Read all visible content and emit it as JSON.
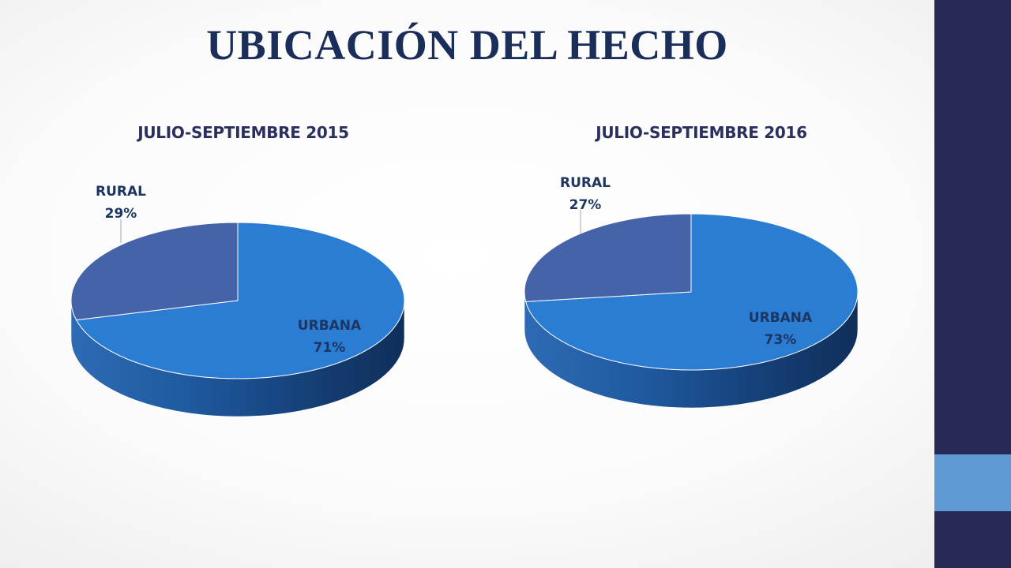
{
  "slide": {
    "title": "UBICACIÓN DEL HECHO"
  },
  "colors": {
    "urbana": "#2b7cd3",
    "rural": "#4563a9",
    "sidebar": "#272a57",
    "sidebar_accent": "#5f9bd2",
    "title": "#1b2e5a"
  },
  "chart_data": [
    {
      "type": "pie",
      "title": "JULIO-SEPTIEMBRE 2015",
      "slices": [
        {
          "label": "URBANA",
          "value": 71,
          "display": "71%"
        },
        {
          "label": "RURAL",
          "value": 29,
          "display": "29%"
        }
      ],
      "style": "3d"
    },
    {
      "type": "pie",
      "title": "JULIO-SEPTIEMBRE 2016",
      "slices": [
        {
          "label": "URBANA",
          "value": 73,
          "display": "73%"
        },
        {
          "label": "RURAL",
          "value": 27,
          "display": "27%"
        }
      ],
      "style": "3d"
    }
  ]
}
